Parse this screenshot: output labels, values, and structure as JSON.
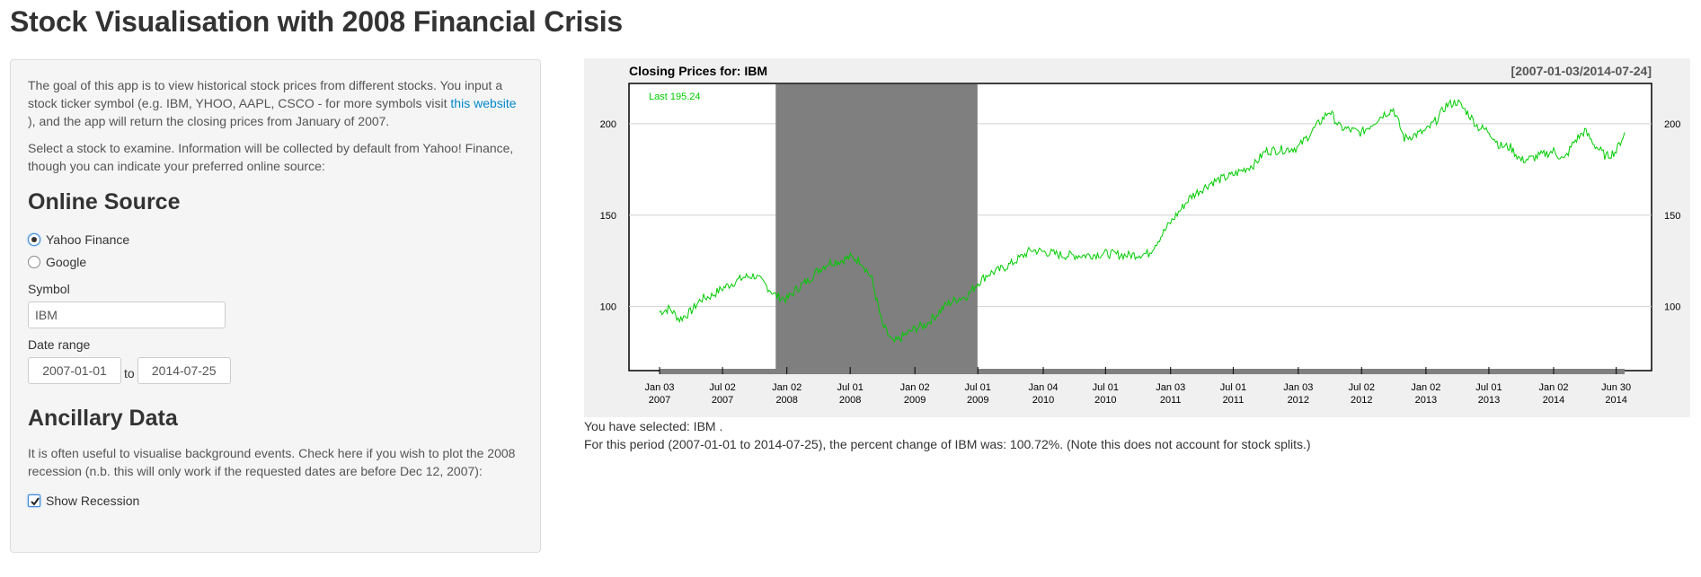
{
  "app": {
    "title": "Stock Visualisation with 2008 Financial Crisis"
  },
  "sidebar": {
    "intro_part1": "The goal of this app is to view historical stock prices from different stocks. You input a stock ticker symbol (e.g. IBM, YHOO, AAPL, CSCO - for more symbols visit ",
    "intro_link": "this website",
    "intro_part2": " ), and the app will return the closing prices from January of 2007.",
    "select_text": "Select a stock to examine. Information will be collected by default from Yahoo! Finance, though you can indicate your preferred online source:",
    "online_source_heading": "Online Source",
    "source_options": [
      {
        "label": "Yahoo Finance",
        "selected": true
      },
      {
        "label": "Google",
        "selected": false
      }
    ],
    "symbol_label": "Symbol",
    "symbol_value": "IBM",
    "date_range_label": "Date range",
    "date_start": "2007-01-01",
    "date_to": "to",
    "date_end": "2014-07-25",
    "ancillary_heading": "Ancillary Data",
    "ancillary_text": "It is often useful to visualise background events. Check here if you wish to plot the 2008 recession (n.b. this will only work if the requested dates are before Dec 12, 2007):",
    "recession_label": "Show Recession",
    "recession_checked": true
  },
  "output": {
    "selected_text": "You have selected: IBM .",
    "period_text": "For this period (2007-01-01 to 2014-07-25), the percent change of IBM was: 100.72%. (Note this does not account for stock splits.)"
  },
  "chart_data": {
    "type": "line",
    "title": "Closing Prices for:  IBM",
    "date_range_label": "[2007-01-03/2014-07-24]",
    "last_label": "Last 195.24",
    "y_ticks": [
      100,
      150,
      200
    ],
    "ylim": [
      65,
      222
    ],
    "x_range": [
      "2007-01-03",
      "2014-07-24"
    ],
    "x_ticks": [
      {
        "date": "2007-01-03",
        "line1": "Jan 03",
        "line2": "2007"
      },
      {
        "date": "2007-07-02",
        "line1": "Jul 02",
        "line2": "2007"
      },
      {
        "date": "2008-01-02",
        "line1": "Jan 02",
        "line2": "2008"
      },
      {
        "date": "2008-07-01",
        "line1": "Jul 01",
        "line2": "2008"
      },
      {
        "date": "2009-01-02",
        "line1": "Jan 02",
        "line2": "2009"
      },
      {
        "date": "2009-07-01",
        "line1": "Jul 01",
        "line2": "2009"
      },
      {
        "date": "2010-01-04",
        "line1": "Jan 04",
        "line2": "2010"
      },
      {
        "date": "2010-07-01",
        "line1": "Jul 01",
        "line2": "2010"
      },
      {
        "date": "2011-01-03",
        "line1": "Jan 03",
        "line2": "2011"
      },
      {
        "date": "2011-07-01",
        "line1": "Jul 01",
        "line2": "2011"
      },
      {
        "date": "2012-01-03",
        "line1": "Jan 03",
        "line2": "2012"
      },
      {
        "date": "2012-07-02",
        "line1": "Jul 02",
        "line2": "2012"
      },
      {
        "date": "2013-01-02",
        "line1": "Jan 02",
        "line2": "2013"
      },
      {
        "date": "2013-07-01",
        "line1": "Jul 01",
        "line2": "2013"
      },
      {
        "date": "2014-01-02",
        "line1": "Jan 02",
        "line2": "2014"
      },
      {
        "date": "2014-06-30",
        "line1": "Jun 30",
        "line2": "2014"
      }
    ],
    "recession": {
      "start": "2007-12-01",
      "end": "2009-06-30"
    },
    "series": [
      {
        "color": "#00cc00",
        "points": [
          [
            "2007-01-03",
            97
          ],
          [
            "2007-02-01",
            99
          ],
          [
            "2007-03-01",
            93
          ],
          [
            "2007-04-01",
            97
          ],
          [
            "2007-05-01",
            104
          ],
          [
            "2007-06-01",
            106
          ],
          [
            "2007-07-02",
            110
          ],
          [
            "2007-08-01",
            113
          ],
          [
            "2007-09-01",
            116
          ],
          [
            "2007-10-01",
            117
          ],
          [
            "2007-11-01",
            112
          ],
          [
            "2007-12-01",
            106
          ],
          [
            "2008-01-02",
            104
          ],
          [
            "2008-02-01",
            110
          ],
          [
            "2008-03-01",
            114
          ],
          [
            "2008-04-01",
            120
          ],
          [
            "2008-05-01",
            124
          ],
          [
            "2008-06-01",
            125
          ],
          [
            "2008-07-01",
            127
          ],
          [
            "2008-08-01",
            125
          ],
          [
            "2008-09-01",
            115
          ],
          [
            "2008-10-01",
            90
          ],
          [
            "2008-11-01",
            80
          ],
          [
            "2008-12-01",
            84
          ],
          [
            "2009-01-02",
            88
          ],
          [
            "2009-02-01",
            90
          ],
          [
            "2009-03-01",
            95
          ],
          [
            "2009-04-01",
            101
          ],
          [
            "2009-05-01",
            104
          ],
          [
            "2009-06-01",
            106
          ],
          [
            "2009-07-01",
            113
          ],
          [
            "2009-08-01",
            118
          ],
          [
            "2009-09-01",
            120
          ],
          [
            "2009-10-01",
            123
          ],
          [
            "2009-11-01",
            127
          ],
          [
            "2009-12-01",
            131
          ],
          [
            "2010-01-04",
            130
          ],
          [
            "2010-03-01",
            128
          ],
          [
            "2010-05-01",
            128
          ],
          [
            "2010-07-01",
            129
          ],
          [
            "2010-09-01",
            128
          ],
          [
            "2010-11-01",
            129
          ],
          [
            "2011-01-03",
            146
          ],
          [
            "2011-03-01",
            160
          ],
          [
            "2011-05-01",
            168
          ],
          [
            "2011-07-01",
            172
          ],
          [
            "2011-09-01",
            178
          ],
          [
            "2011-10-01",
            185
          ],
          [
            "2011-12-01",
            186
          ],
          [
            "2012-01-03",
            187
          ],
          [
            "2012-03-01",
            200
          ],
          [
            "2012-04-01",
            207
          ],
          [
            "2012-05-01",
            198
          ],
          [
            "2012-07-02",
            195
          ],
          [
            "2012-09-01",
            205
          ],
          [
            "2012-10-01",
            208
          ],
          [
            "2012-11-01",
            192
          ],
          [
            "2013-01-02",
            196
          ],
          [
            "2013-02-01",
            202
          ],
          [
            "2013-03-01",
            210
          ],
          [
            "2013-04-01",
            212
          ],
          [
            "2013-05-01",
            206
          ],
          [
            "2013-06-01",
            198
          ],
          [
            "2013-07-01",
            196
          ],
          [
            "2013-08-01",
            188
          ],
          [
            "2013-09-01",
            187
          ],
          [
            "2013-10-01",
            180
          ],
          [
            "2013-11-01",
            181
          ],
          [
            "2013-12-01",
            183
          ],
          [
            "2014-01-02",
            185
          ],
          [
            "2014-02-01",
            180
          ],
          [
            "2014-03-01",
            190
          ],
          [
            "2014-04-01",
            196
          ],
          [
            "2014-05-01",
            188
          ],
          [
            "2014-06-01",
            182
          ],
          [
            "2014-06-30",
            185
          ],
          [
            "2014-07-24",
            195.24
          ]
        ]
      }
    ]
  }
}
